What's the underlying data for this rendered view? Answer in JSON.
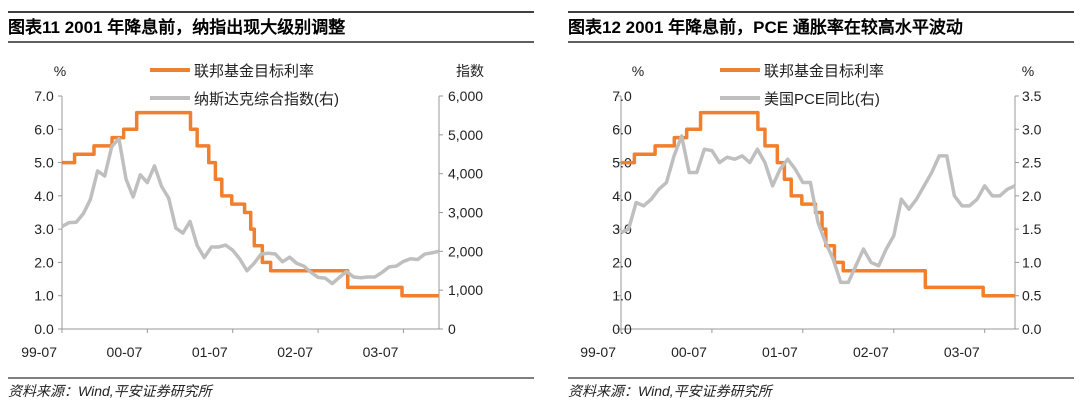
{
  "chart_data": [
    {
      "type": "line",
      "title": "图表11    2001 年降息前，纳指出现大级别调整",
      "ylabel_left": "%",
      "ylabel_right": "指数",
      "ylim_left": [
        0,
        7
      ],
      "ylim_right": [
        0,
        6000
      ],
      "yticks_left": [
        "0.0",
        "1.0",
        "2.0",
        "3.0",
        "4.0",
        "5.0",
        "6.0",
        "7.0"
      ],
      "yticks_right": [
        "0",
        "1,000",
        "2,000",
        "3,000",
        "4,000",
        "5,000",
        "6,000"
      ],
      "xticks": [
        "99-07",
        "00-07",
        "01-07",
        "02-07",
        "03-07"
      ],
      "xrange": [
        "1999-07",
        "2003-12"
      ],
      "legend_placement": "top-center",
      "source": "资料来源：Wind,平安证券研究所",
      "series": [
        {
          "name": "联邦基金目标利率",
          "axis": "left",
          "color": "#F07F2E",
          "step": true,
          "points": [
            [
              "1999-07",
              5.0
            ],
            [
              "1999-08-24",
              5.25
            ],
            [
              "1999-11-16",
              5.5
            ],
            [
              "2000-02-02",
              5.75
            ],
            [
              "2000-03-21",
              6.0
            ],
            [
              "2000-05-16",
              6.5
            ],
            [
              "2001-01-03",
              6.0
            ],
            [
              "2001-01-31",
              5.5
            ],
            [
              "2001-03-20",
              5.0
            ],
            [
              "2001-04-18",
              4.5
            ],
            [
              "2001-05-15",
              4.0
            ],
            [
              "2001-06-27",
              3.75
            ],
            [
              "2001-08-21",
              3.5
            ],
            [
              "2001-09-17",
              3.0
            ],
            [
              "2001-10-02",
              2.5
            ],
            [
              "2001-11-06",
              2.0
            ],
            [
              "2001-12-11",
              1.75
            ],
            [
              "2002-11-06",
              1.25
            ],
            [
              "2003-06-25",
              1.0
            ],
            [
              "2003-12",
              1.0
            ]
          ]
        },
        {
          "name": "纳斯达克综合指数(右)",
          "axis": "right",
          "color": "#BFBFBF",
          "points": [
            [
              "1999-07",
              2640
            ],
            [
              "1999-08",
              2740
            ],
            [
              "1999-09",
              2750
            ],
            [
              "1999-10",
              2970
            ],
            [
              "1999-11",
              3340
            ],
            [
              "1999-12",
              4070
            ],
            [
              "2000-01",
              3940
            ],
            [
              "2000-02",
              4700
            ],
            [
              "2000-03",
              4900
            ],
            [
              "2000-04",
              3860
            ],
            [
              "2000-05",
              3400
            ],
            [
              "2000-06",
              3970
            ],
            [
              "2000-07",
              3770
            ],
            [
              "2000-08",
              4200
            ],
            [
              "2000-09",
              3670
            ],
            [
              "2000-10",
              3370
            ],
            [
              "2000-11",
              2600
            ],
            [
              "2000-12",
              2470
            ],
            [
              "2001-01",
              2770
            ],
            [
              "2001-02",
              2150
            ],
            [
              "2001-03",
              1840
            ],
            [
              "2001-04",
              2110
            ],
            [
              "2001-05",
              2110
            ],
            [
              "2001-06",
              2160
            ],
            [
              "2001-07",
              2030
            ],
            [
              "2001-08",
              1800
            ],
            [
              "2001-09",
              1500
            ],
            [
              "2001-10",
              1690
            ],
            [
              "2001-11",
              1930
            ],
            [
              "2001-12",
              1950
            ],
            [
              "2002-01",
              1930
            ],
            [
              "2002-02",
              1730
            ],
            [
              "2002-03",
              1850
            ],
            [
              "2002-04",
              1690
            ],
            [
              "2002-05",
              1620
            ],
            [
              "2002-06",
              1460
            ],
            [
              "2002-07",
              1330
            ],
            [
              "2002-08",
              1310
            ],
            [
              "2002-09",
              1170
            ],
            [
              "2002-10",
              1330
            ],
            [
              "2002-11",
              1480
            ],
            [
              "2002-12",
              1340
            ],
            [
              "2003-01",
              1320
            ],
            [
              "2003-02",
              1340
            ],
            [
              "2003-03",
              1340
            ],
            [
              "2003-04",
              1460
            ],
            [
              "2003-05",
              1600
            ],
            [
              "2003-06",
              1620
            ],
            [
              "2003-07",
              1740
            ],
            [
              "2003-08",
              1810
            ],
            [
              "2003-09",
              1790
            ],
            [
              "2003-10",
              1930
            ],
            [
              "2003-11",
              1960
            ],
            [
              "2003-12",
              2000
            ]
          ]
        }
      ]
    },
    {
      "type": "line",
      "title": "图表12    2001 年降息前，PCE 通胀率在较高水平波动",
      "ylabel_left": "%",
      "ylabel_right": "%",
      "ylim_left": [
        0,
        7
      ],
      "ylim_right": [
        0,
        3.5
      ],
      "yticks_left": [
        "0.0",
        "1.0",
        "2.0",
        "3.0",
        "4.0",
        "5.0",
        "6.0",
        "7.0"
      ],
      "yticks_right": [
        "0.0",
        "0.5",
        "1.0",
        "1.5",
        "2.0",
        "2.5",
        "3.0",
        "3.5"
      ],
      "xticks": [
        "99-07",
        "00-07",
        "01-07",
        "02-07",
        "03-07"
      ],
      "xrange": [
        "1999-07",
        "2003-11"
      ],
      "legend_placement": "top-center",
      "source": "资料来源：Wind,平安证券研究所",
      "series": [
        {
          "name": "联邦基金目标利率",
          "axis": "left",
          "color": "#F07F2E",
          "step": true,
          "points": [
            [
              "1999-07",
              5.0
            ],
            [
              "1999-08-24",
              5.25
            ],
            [
              "1999-11-16",
              5.5
            ],
            [
              "2000-02-02",
              5.75
            ],
            [
              "2000-03-21",
              6.0
            ],
            [
              "2000-05-16",
              6.5
            ],
            [
              "2001-01-03",
              6.0
            ],
            [
              "2001-01-31",
              5.5
            ],
            [
              "2001-03-20",
              5.0
            ],
            [
              "2001-04-18",
              4.5
            ],
            [
              "2001-05-15",
              4.0
            ],
            [
              "2001-06-27",
              3.75
            ],
            [
              "2001-08-21",
              3.5
            ],
            [
              "2001-09-17",
              3.0
            ],
            [
              "2001-10-02",
              2.5
            ],
            [
              "2001-11-06",
              2.0
            ],
            [
              "2001-12-11",
              1.75
            ],
            [
              "2002-11-06",
              1.25
            ],
            [
              "2003-06-25",
              1.0
            ],
            [
              "2003-11",
              1.0
            ]
          ]
        },
        {
          "name": "美国PCE同比(右)",
          "axis": "right",
          "color": "#BFBFBF",
          "points": [
            [
              "1999-07",
              1.45
            ],
            [
              "1999-08",
              1.5
            ],
            [
              "1999-09",
              1.9
            ],
            [
              "1999-10",
              1.85
            ],
            [
              "1999-11",
              1.95
            ],
            [
              "1999-12",
              2.1
            ],
            [
              "2000-01",
              2.2
            ],
            [
              "2000-02",
              2.6
            ],
            [
              "2000-03",
              2.9
            ],
            [
              "2000-04",
              2.35
            ],
            [
              "2000-05",
              2.35
            ],
            [
              "2000-06",
              2.7
            ],
            [
              "2000-07",
              2.68
            ],
            [
              "2000-08",
              2.5
            ],
            [
              "2000-09",
              2.58
            ],
            [
              "2000-10",
              2.55
            ],
            [
              "2000-11",
              2.6
            ],
            [
              "2000-12",
              2.5
            ],
            [
              "2001-01",
              2.7
            ],
            [
              "2001-02",
              2.5
            ],
            [
              "2001-03",
              2.15
            ],
            [
              "2001-04",
              2.4
            ],
            [
              "2001-05",
              2.55
            ],
            [
              "2001-06",
              2.4
            ],
            [
              "2001-07",
              2.2
            ],
            [
              "2001-08",
              2.2
            ],
            [
              "2001-09",
              1.6
            ],
            [
              "2001-10",
              1.3
            ],
            [
              "2001-11",
              1.05
            ],
            [
              "2001-12",
              0.7
            ],
            [
              "2002-01",
              0.7
            ],
            [
              "2002-02",
              0.95
            ],
            [
              "2002-03",
              1.2
            ],
            [
              "2002-04",
              1.0
            ],
            [
              "2002-05",
              0.95
            ],
            [
              "2002-06",
              1.2
            ],
            [
              "2002-07",
              1.4
            ],
            [
              "2002-08",
              1.95
            ],
            [
              "2002-09",
              1.8
            ],
            [
              "2002-10",
              1.95
            ],
            [
              "2002-11",
              2.15
            ],
            [
              "2002-12",
              2.35
            ],
            [
              "2003-01",
              2.6
            ],
            [
              "2003-02",
              2.6
            ],
            [
              "2003-03",
              2.0
            ],
            [
              "2003-04",
              1.85
            ],
            [
              "2003-05",
              1.85
            ],
            [
              "2003-06",
              1.95
            ],
            [
              "2003-07",
              2.15
            ],
            [
              "2003-08",
              2.0
            ],
            [
              "2003-09",
              2.0
            ],
            [
              "2003-10",
              2.1
            ],
            [
              "2003-11",
              2.15
            ]
          ]
        }
      ]
    }
  ]
}
